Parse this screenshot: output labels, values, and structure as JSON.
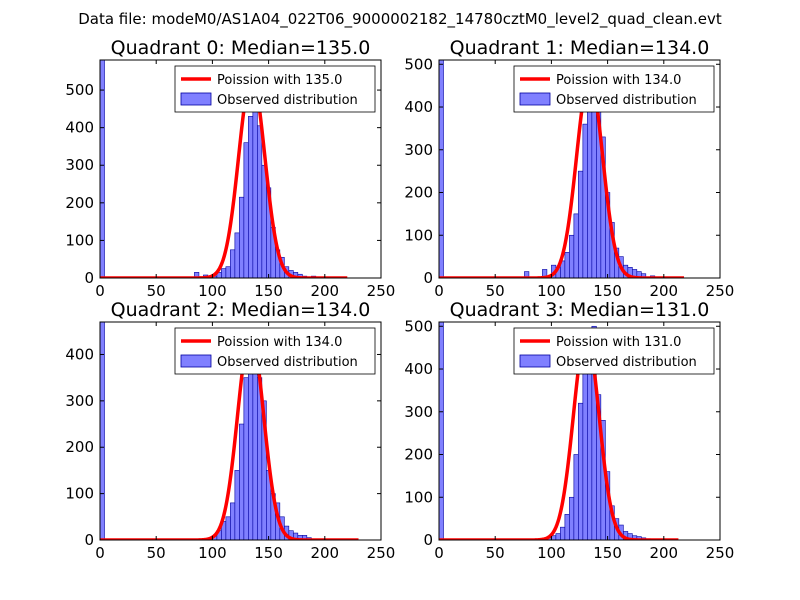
{
  "suptitle": "Data file: modeM0/AS1A04_022T06_9000002182_14780cztM0_level2_quad_clean.evt",
  "colors": {
    "bar_fill": "#8080ff",
    "bar_edge": "#0000a0",
    "poisson_line": "#ff0000",
    "axes": "#000000",
    "background": "#ffffff"
  },
  "chart_data": [
    {
      "type": "bar+line",
      "title": "Quadrant 0: Median=135.0",
      "xlabel": "",
      "ylabel": "",
      "xlim": [
        0,
        250
      ],
      "ylim": [
        0,
        580
      ],
      "xticks": [
        0,
        50,
        100,
        150,
        200,
        250
      ],
      "yticks": [
        0,
        100,
        200,
        300,
        400,
        500
      ],
      "grid": false,
      "legend_position": "top-right",
      "legend": [
        "Poission with 135.0",
        "Observed distribution"
      ],
      "bin_width": 4,
      "bars": [
        [
          0,
          580
        ],
        [
          84,
          15
        ],
        [
          92,
          8
        ],
        [
          100,
          5
        ],
        [
          104,
          15
        ],
        [
          108,
          25
        ],
        [
          112,
          30
        ],
        [
          116,
          75
        ],
        [
          120,
          120
        ],
        [
          124,
          215
        ],
        [
          128,
          360
        ],
        [
          132,
          430
        ],
        [
          136,
          500
        ],
        [
          140,
          405
        ],
        [
          144,
          300
        ],
        [
          148,
          240
        ],
        [
          152,
          135
        ],
        [
          156,
          75
        ],
        [
          160,
          55
        ],
        [
          164,
          30
        ],
        [
          168,
          20
        ],
        [
          172,
          15
        ],
        [
          176,
          10
        ],
        [
          180,
          5
        ],
        [
          188,
          5
        ]
      ],
      "poisson": {
        "mean": 135.0,
        "peak": 535,
        "xmin": 0,
        "xmax": 220
      }
    },
    {
      "type": "bar+line",
      "title": "Quadrant 1: Median=134.0",
      "xlabel": "",
      "ylabel": "",
      "xlim": [
        0,
        250
      ],
      "ylim": [
        0,
        510
      ],
      "xticks": [
        0,
        50,
        100,
        150,
        200,
        250
      ],
      "yticks": [
        0,
        100,
        200,
        300,
        400,
        500
      ],
      "grid": false,
      "legend_position": "top-right",
      "legend": [
        "Poission with 134.0",
        "Observed distribution"
      ],
      "bin_width": 4,
      "bars": [
        [
          0,
          510
        ],
        [
          76,
          15
        ],
        [
          92,
          20
        ],
        [
          100,
          30
        ],
        [
          104,
          25
        ],
        [
          108,
          40
        ],
        [
          112,
          60
        ],
        [
          116,
          100
        ],
        [
          120,
          150
        ],
        [
          124,
          250
        ],
        [
          128,
          360
        ],
        [
          132,
          395
        ],
        [
          136,
          470
        ],
        [
          140,
          400
        ],
        [
          144,
          330
        ],
        [
          148,
          200
        ],
        [
          152,
          130
        ],
        [
          156,
          70
        ],
        [
          160,
          50
        ],
        [
          164,
          30
        ],
        [
          168,
          25
        ],
        [
          172,
          20
        ],
        [
          176,
          15
        ],
        [
          180,
          10
        ],
        [
          188,
          5
        ]
      ],
      "poisson": {
        "mean": 134.0,
        "peak": 470,
        "xmin": 0,
        "xmax": 218
      }
    },
    {
      "type": "bar+line",
      "title": "Quadrant 2: Median=134.0",
      "xlabel": "",
      "ylabel": "",
      "xlim": [
        0,
        250
      ],
      "ylim": [
        0,
        470
      ],
      "xticks": [
        0,
        50,
        100,
        150,
        200,
        250
      ],
      "yticks": [
        0,
        100,
        200,
        300,
        400
      ],
      "grid": false,
      "legend_position": "top-right",
      "legend": [
        "Poission with 134.0",
        "Observed distribution"
      ],
      "bin_width": 4,
      "bars": [
        [
          0,
          470
        ],
        [
          96,
          5
        ],
        [
          100,
          10
        ],
        [
          104,
          20
        ],
        [
          108,
          40
        ],
        [
          112,
          50
        ],
        [
          116,
          80
        ],
        [
          120,
          150
        ],
        [
          124,
          250
        ],
        [
          128,
          350
        ],
        [
          132,
          360
        ],
        [
          136,
          420
        ],
        [
          140,
          350
        ],
        [
          144,
          300
        ],
        [
          148,
          150
        ],
        [
          152,
          100
        ],
        [
          156,
          80
        ],
        [
          160,
          50
        ],
        [
          164,
          30
        ],
        [
          168,
          20
        ],
        [
          172,
          15
        ],
        [
          176,
          10
        ],
        [
          180,
          10
        ],
        [
          184,
          5
        ]
      ],
      "poisson": {
        "mean": 134.0,
        "peak": 445,
        "xmin": 0,
        "xmax": 230
      }
    },
    {
      "type": "bar+line",
      "title": "Quadrant 3: Median=131.0",
      "xlabel": "",
      "ylabel": "",
      "xlim": [
        0,
        250
      ],
      "ylim": [
        0,
        510
      ],
      "xticks": [
        0,
        50,
        100,
        150,
        200,
        250
      ],
      "yticks": [
        0,
        100,
        200,
        300,
        400,
        500
      ],
      "grid": false,
      "legend_position": "top-right",
      "legend": [
        "Poission with 131.0",
        "Observed distribution"
      ],
      "bin_width": 4,
      "bars": [
        [
          0,
          510
        ],
        [
          96,
          5
        ],
        [
          100,
          10
        ],
        [
          104,
          15
        ],
        [
          108,
          30
        ],
        [
          112,
          60
        ],
        [
          116,
          100
        ],
        [
          120,
          200
        ],
        [
          124,
          320
        ],
        [
          128,
          450
        ],
        [
          132,
          410
        ],
        [
          136,
          500
        ],
        [
          140,
          340
        ],
        [
          144,
          280
        ],
        [
          148,
          160
        ],
        [
          152,
          80
        ],
        [
          156,
          50
        ],
        [
          160,
          35
        ],
        [
          164,
          20
        ],
        [
          168,
          15
        ],
        [
          172,
          10
        ],
        [
          176,
          8
        ],
        [
          180,
          5
        ],
        [
          184,
          3
        ]
      ],
      "poisson": {
        "mean": 131.0,
        "peak": 480,
        "xmin": 0,
        "xmax": 213
      }
    }
  ]
}
